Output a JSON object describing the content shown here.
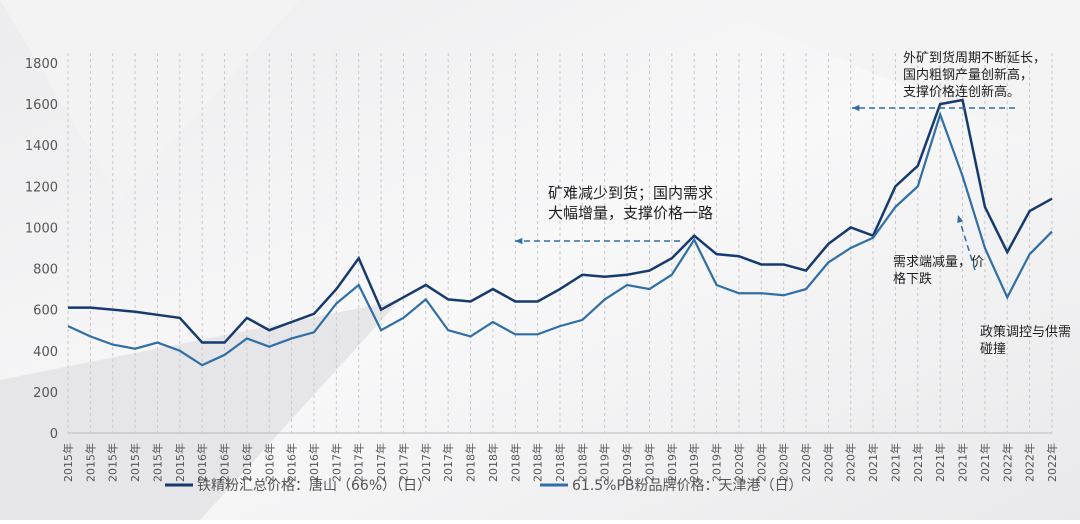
{
  "chart_data": {
    "type": "line",
    "categories": [
      "2015年",
      "2015年",
      "2015年",
      "2015年",
      "2015年",
      "2015年",
      "2016年",
      "2016年",
      "2016年",
      "2016年",
      "2016年",
      "2016年",
      "2017年",
      "2017年",
      "2017年",
      "2017年",
      "2017年",
      "2017年",
      "2018年",
      "2018年",
      "2018年",
      "2018年",
      "2018年",
      "2018年",
      "2019年",
      "2019年",
      "2019年",
      "2019年",
      "2019年",
      "2019年",
      "2020年",
      "2020年",
      "2020年",
      "2020年",
      "2020年",
      "2020年",
      "2021年",
      "2021年",
      "2021年",
      "2021年",
      "2021年",
      "2021年",
      "2022年",
      "2022年",
      "2022年"
    ],
    "series": [
      {
        "name": "铁精粉汇总价格：唐山（66%）（日）",
        "color": "#163a6e",
        "values": [
          610,
          610,
          600,
          590,
          575,
          560,
          440,
          440,
          560,
          500,
          540,
          580,
          700,
          850,
          600,
          660,
          720,
          650,
          640,
          700,
          640,
          640,
          700,
          770,
          760,
          770,
          790,
          850,
          960,
          870,
          860,
          820,
          820,
          790,
          920,
          1000,
          960,
          1200,
          1300,
          1600,
          1620,
          1100,
          880,
          1080,
          1140
        ]
      },
      {
        "name": "61.5%PB粉品牌价格：天津港（日）",
        "color": "#2f6fa5",
        "values": [
          520,
          470,
          430,
          410,
          440,
          400,
          330,
          380,
          460,
          420,
          460,
          490,
          630,
          720,
          500,
          560,
          650,
          500,
          470,
          540,
          480,
          480,
          520,
          550,
          650,
          720,
          700,
          770,
          940,
          720,
          680,
          680,
          670,
          700,
          830,
          900,
          950,
          1100,
          1200,
          1550,
          1250,
          900,
          660,
          870,
          980
        ]
      }
    ],
    "ylim": [
      0,
      1800
    ],
    "yticks": [
      0,
      200,
      400,
      600,
      800,
      1000,
      1200,
      1400,
      1600,
      1800
    ],
    "grid": true,
    "annotations": [
      {
        "lines": [
          "矿难减少到货；国内需求",
          "大幅增量，支撑价格一路"
        ]
      },
      {
        "lines": [
          "外矿到货周期不断延长，",
          "国内粗钢产量创新高，",
          "支撑价格连创新高。"
        ]
      },
      {
        "lines": [
          "需求端减量，价",
          "格下跌"
        ]
      },
      {
        "lines": [
          "政策调控与供需",
          "碰撞"
        ]
      }
    ]
  }
}
